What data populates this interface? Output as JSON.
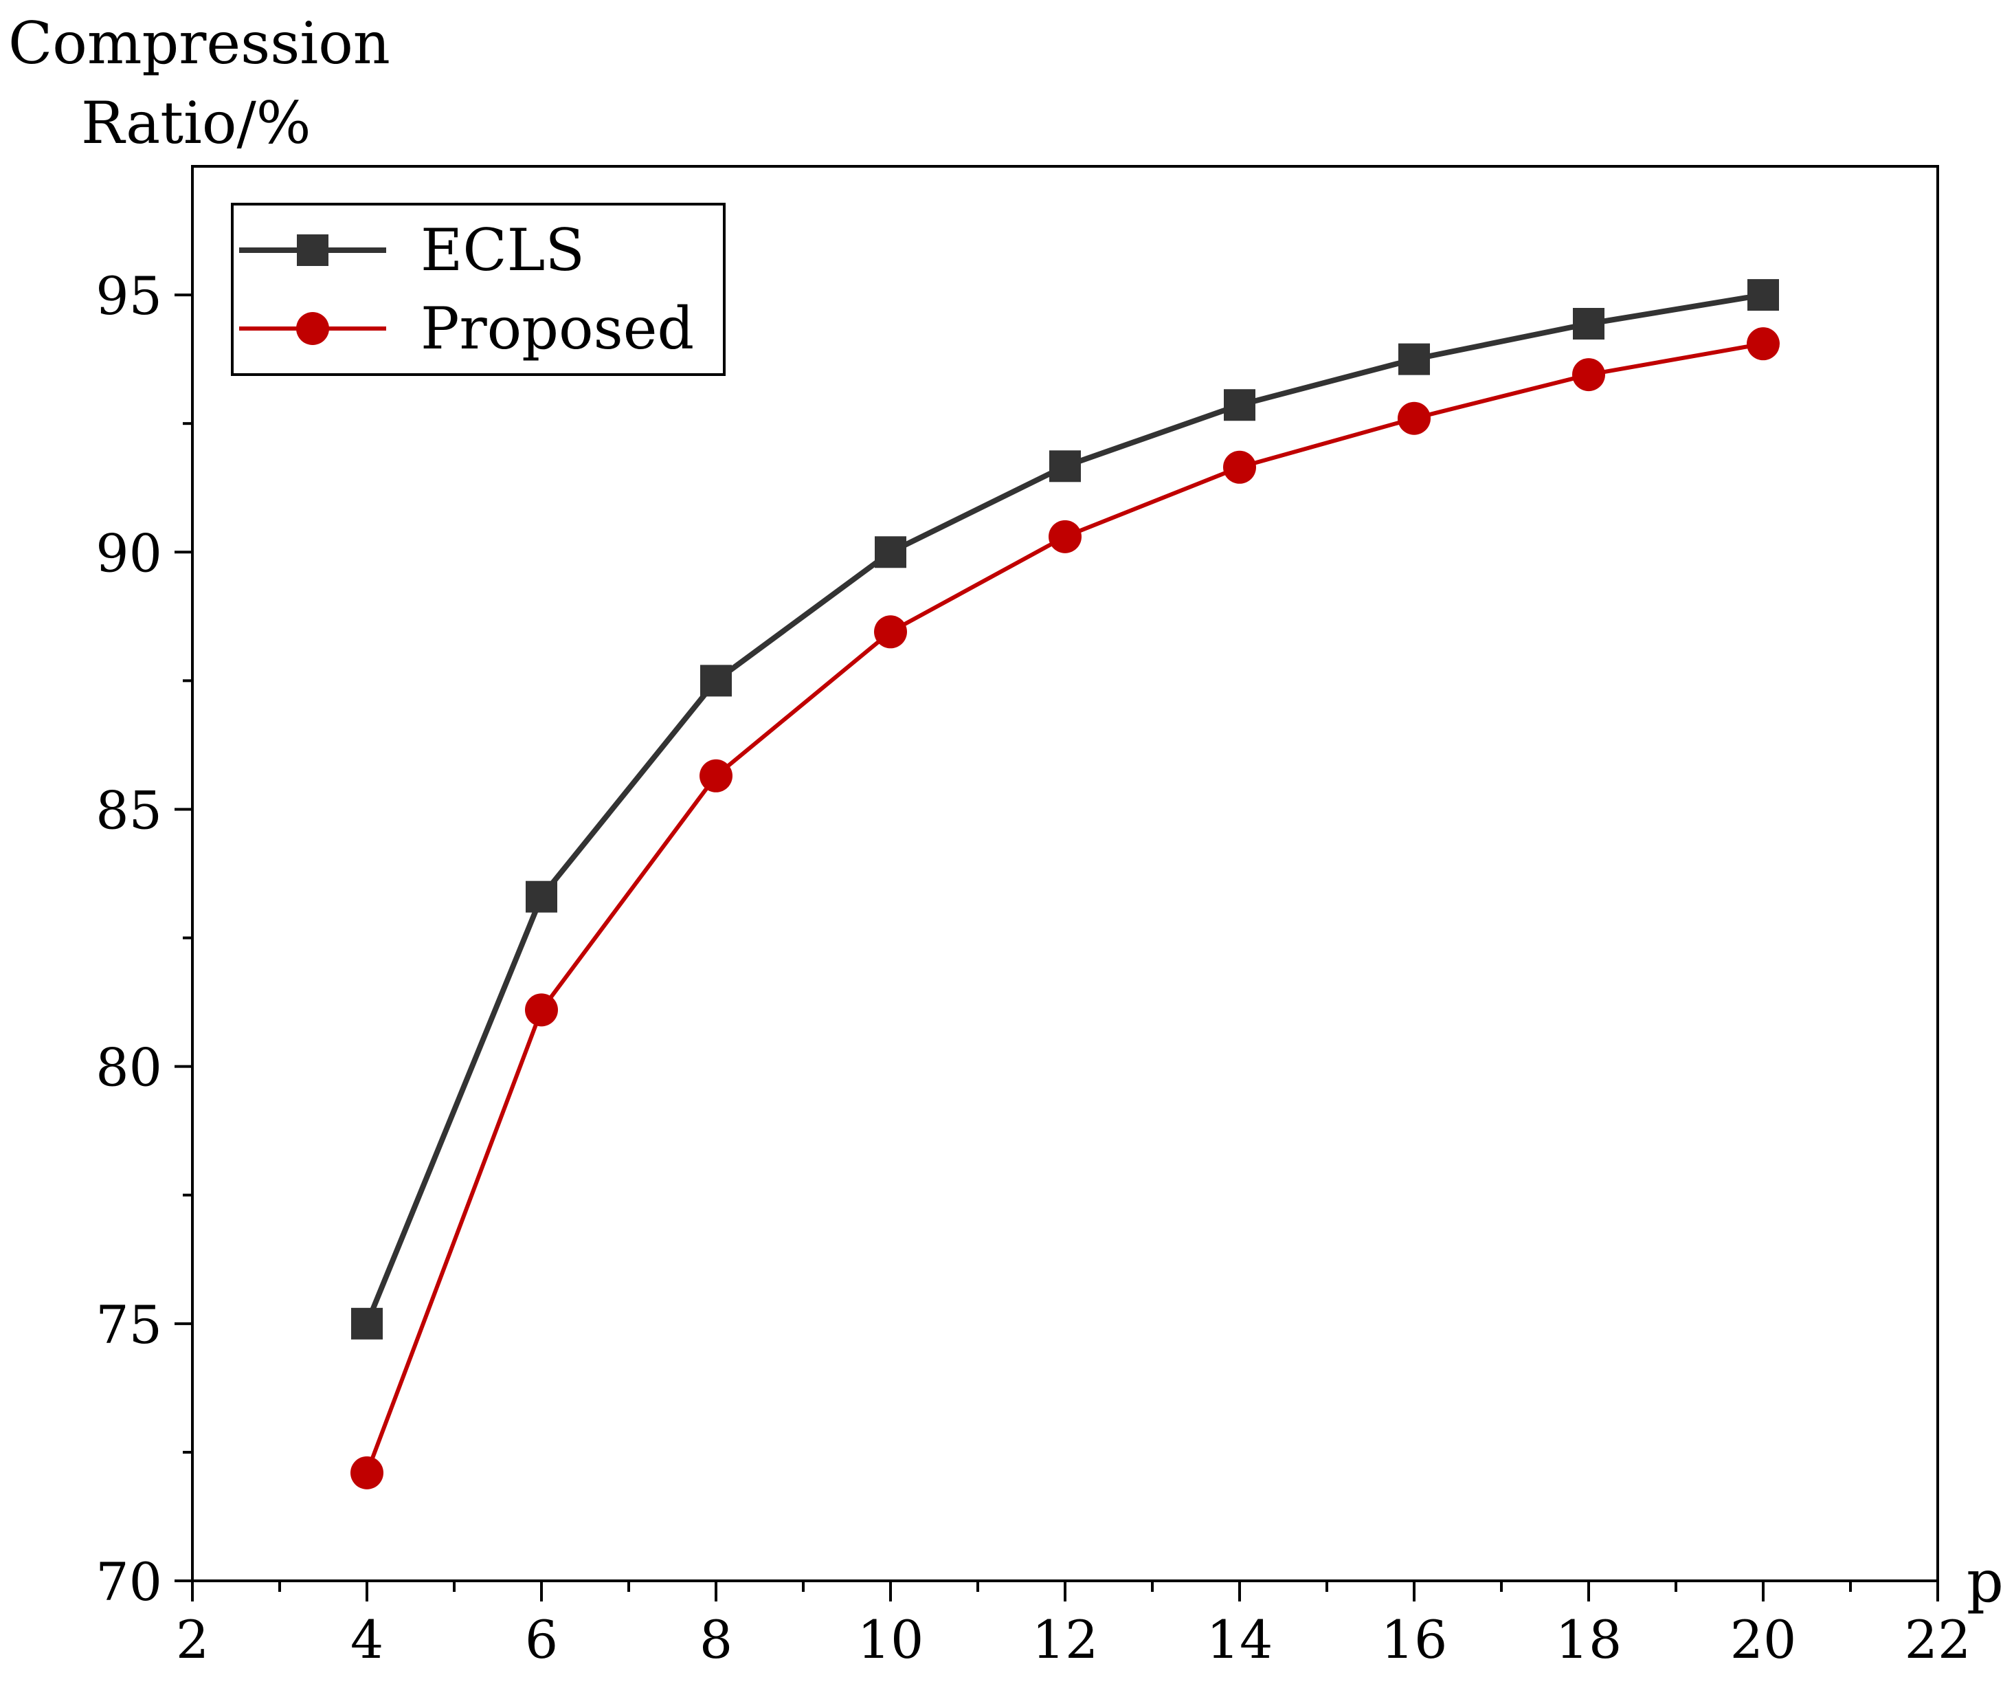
{
  "chart_data": {
    "type": "line",
    "title": "",
    "ylabel_lines": [
      "Compression",
      "Ratio/%"
    ],
    "xlabel": "p",
    "xlim": [
      2,
      22
    ],
    "ylim": [
      70,
      97.5
    ],
    "x_ticks": [
      2,
      4,
      6,
      8,
      10,
      12,
      14,
      16,
      18,
      20,
      22
    ],
    "y_ticks": [
      70,
      75,
      80,
      85,
      90,
      95
    ],
    "x_tick_labels": [
      "2",
      "4",
      "6",
      "8",
      "10",
      "12",
      "14",
      "16",
      "18",
      "20",
      "22"
    ],
    "y_tick_labels": [
      "70",
      "75",
      "80",
      "85",
      "90",
      "95"
    ],
    "grid": false,
    "legend_position": "top-left",
    "x": [
      4,
      6,
      8,
      10,
      12,
      14,
      16,
      18,
      20
    ],
    "series": [
      {
        "name": "ECLS",
        "marker": "square",
        "color": "#333333",
        "values": [
          75.0,
          83.3,
          87.5,
          90.0,
          91.67,
          92.86,
          93.75,
          94.44,
          95.0
        ]
      },
      {
        "name": "Proposed",
        "marker": "circle",
        "color": "#c00000",
        "values": [
          72.1,
          81.1,
          85.65,
          88.45,
          90.3,
          91.65,
          92.6,
          93.45,
          94.05
        ]
      }
    ]
  }
}
